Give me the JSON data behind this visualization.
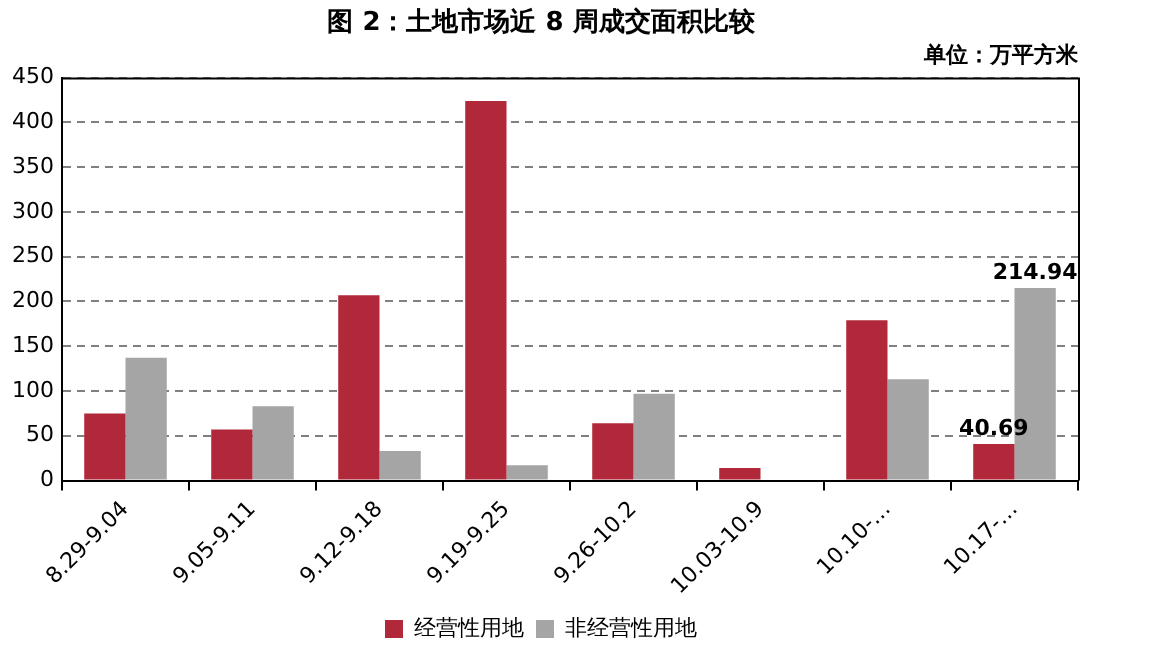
{
  "chart_data": {
    "type": "bar",
    "title": "图 2：土地市场近 8 周成交面积比较",
    "annotations": [
      "单位：万平方米"
    ],
    "categories": [
      "8.29-9.04",
      "9.05-9.11",
      "9.12-9.18",
      "9.19-9.25",
      "9.26-10.2",
      "10.03-10.9",
      "10.10-…",
      "10.17-…"
    ],
    "series": [
      {
        "name": "经营性用地",
        "color": "#b0283a",
        "values": [
          75,
          57,
          207,
          424,
          64,
          14,
          179,
          40.69
        ],
        "value_labels": [
          null,
          null,
          null,
          null,
          null,
          null,
          null,
          "40.69"
        ]
      },
      {
        "name": "非经营性用地",
        "color": "#a5a5a5",
        "values": [
          137,
          83,
          33,
          17,
          97,
          null,
          113,
          214.94
        ],
        "value_labels": [
          null,
          null,
          null,
          null,
          null,
          null,
          null,
          "214.94"
        ]
      }
    ],
    "ylim": [
      0,
      450
    ],
    "yticks": [
      0,
      50,
      100,
      150,
      200,
      250,
      300,
      350,
      400,
      450
    ],
    "grid": "y",
    "legend": "bottom"
  }
}
